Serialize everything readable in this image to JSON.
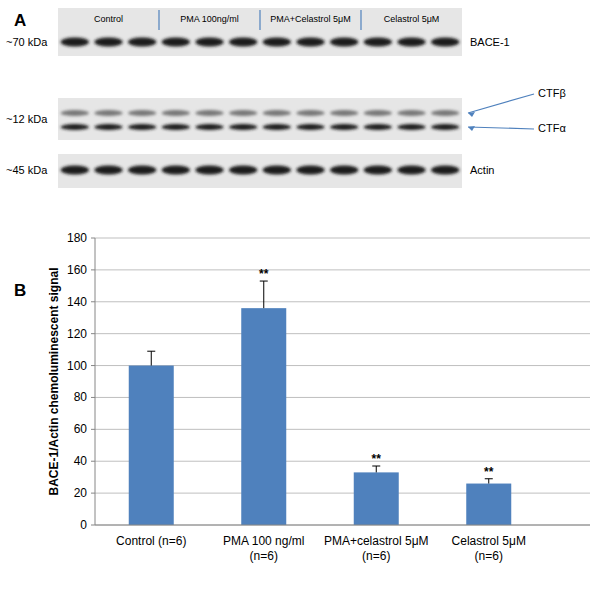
{
  "panel_labels": [
    "A",
    "B"
  ],
  "blot": {
    "groups": [
      "Control",
      "PMA 100ng/ml",
      "PMA+Celastrol 5μM",
      "Celastrol 5μM"
    ],
    "rows": [
      {
        "size": "~70 kDa",
        "labels": [
          "BACE-1"
        ]
      },
      {
        "size": "~12 kDa",
        "labels": [
          "CTFβ",
          "CTFα"
        ]
      },
      {
        "size": "~45 kDa",
        "labels": [
          "Actin"
        ]
      }
    ]
  },
  "chart_data": {
    "type": "bar",
    "y_label": "BACE-1/Actin chemoluminescent signal",
    "categories": [
      "Control (n=6)",
      "PMA 100 ng/ml (n=6)",
      "PMA+celastrol 5μM (n=6)",
      "Celastrol 5μM (n=6)"
    ],
    "values": [
      100,
      136,
      33,
      26
    ],
    "errors": [
      9,
      17,
      4,
      3
    ],
    "annotations": [
      null,
      "**",
      "**",
      "**"
    ],
    "color": "#4f81bd",
    "ylim": [
      0,
      180
    ],
    "yticks": [
      0,
      20,
      40,
      60,
      80,
      100,
      120,
      140,
      160,
      180
    ],
    "grid": true
  }
}
